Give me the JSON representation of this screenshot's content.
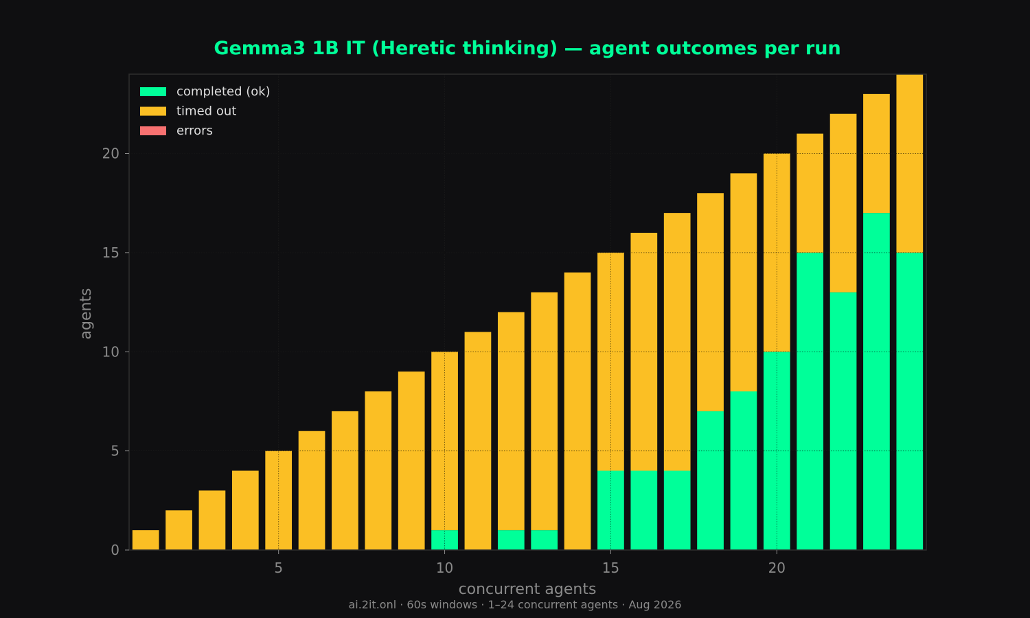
{
  "colors": {
    "background": "#0f0f11",
    "title": "#00ff99",
    "completed": "#00ff99",
    "timed_out": "#fbbf24",
    "errors": "#f87171",
    "axis_text": "#8a8a8a",
    "legend_text": "#dddddd",
    "grid": "#3a3a3a",
    "frame": "#2e2e2e"
  },
  "footer": "ai.2it.onl · 60s windows · 1–24 concurrent agents · Aug 2026",
  "chart_data": {
    "type": "bar",
    "stacked": true,
    "title": "Gemma3 1B IT (Heretic thinking) — agent outcomes per run",
    "xlabel": "concurrent agents",
    "ylabel": "agents",
    "x": [
      1,
      2,
      3,
      4,
      5,
      6,
      7,
      8,
      9,
      10,
      11,
      12,
      13,
      14,
      15,
      16,
      17,
      18,
      19,
      20,
      21,
      22,
      23,
      24
    ],
    "xlim": [
      0.5,
      24.5
    ],
    "ylim": [
      0,
      24
    ],
    "xticks": [
      5,
      10,
      15,
      20
    ],
    "yticks": [
      0,
      5,
      10,
      15,
      20
    ],
    "grid": true,
    "legend_position": "top-left",
    "series": [
      {
        "name": "completed (ok)",
        "color": "#00ff99",
        "values": [
          0,
          0,
          0,
          0,
          0,
          0,
          0,
          0,
          0,
          1,
          0,
          1,
          1,
          0,
          4,
          4,
          4,
          7,
          8,
          10,
          15,
          13,
          17,
          15
        ]
      },
      {
        "name": "timed out",
        "color": "#fbbf24",
        "values": [
          1,
          2,
          3,
          4,
          5,
          6,
          7,
          8,
          9,
          9,
          11,
          11,
          12,
          14,
          11,
          12,
          13,
          11,
          11,
          10,
          6,
          9,
          6,
          9
        ]
      },
      {
        "name": "errors",
        "color": "#f87171",
        "values": [
          0,
          0,
          0,
          0,
          0,
          0,
          0,
          0,
          0,
          0,
          0,
          0,
          0,
          0,
          0,
          0,
          0,
          0,
          0,
          0,
          0,
          0,
          0,
          0
        ]
      }
    ]
  }
}
